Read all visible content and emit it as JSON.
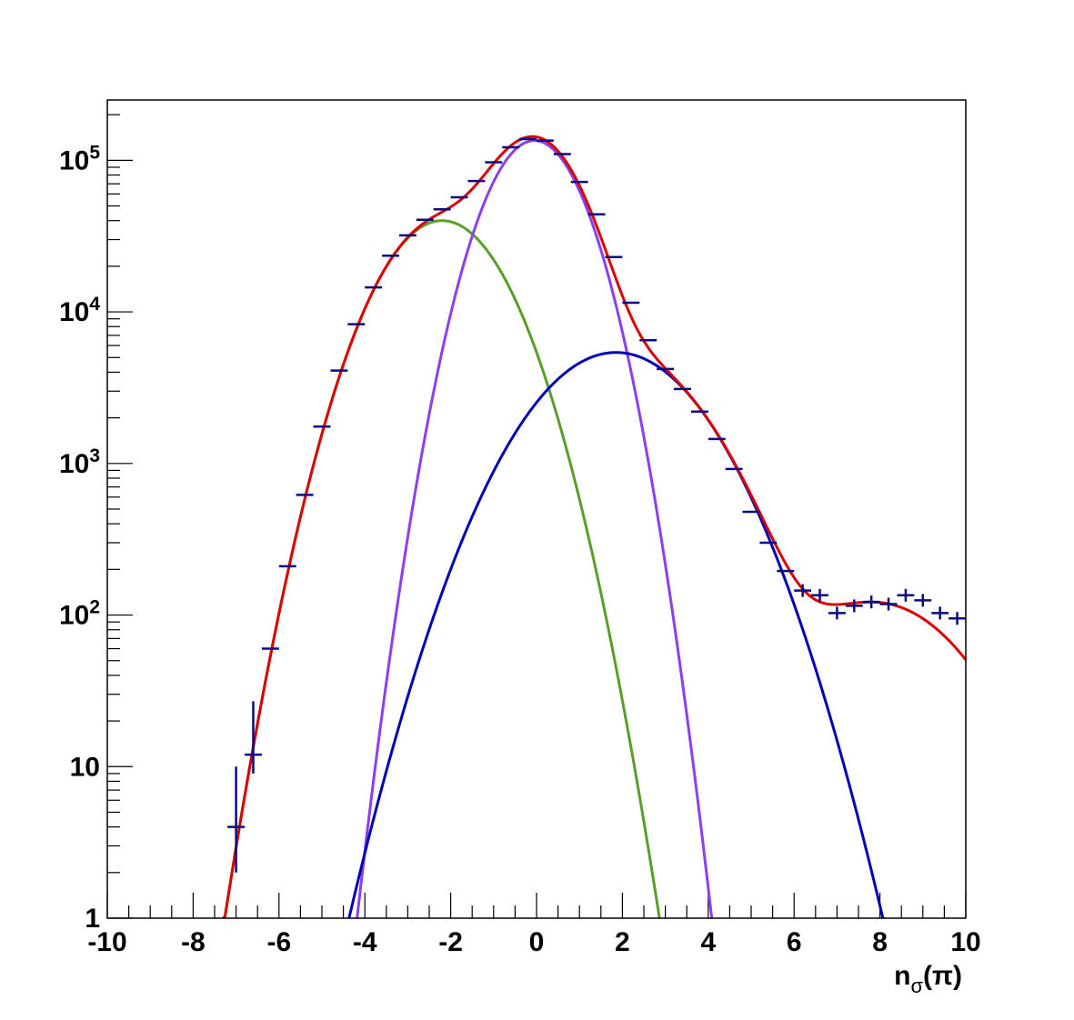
{
  "chart_data": {
    "type": "scatter",
    "xlabel": "n",
    "xlabel_sub": "σ",
    "xlabel_tail": "(π)",
    "xlim": [
      -10,
      10
    ],
    "ylim": [
      1,
      250000
    ],
    "yscale": "log",
    "grid": false,
    "x_ticks": [
      "-10",
      "-8",
      "-6",
      "-4",
      "-2",
      "0",
      "2",
      "4",
      "6",
      "8",
      "10"
    ],
    "y_ticks": [
      {
        "base": "10",
        "exp": "5",
        "value": 100000
      },
      {
        "base": "10",
        "exp": "4",
        "value": 10000
      },
      {
        "base": "10",
        "exp": "3",
        "value": 1000
      },
      {
        "base": "10",
        "exp": "2",
        "value": 100
      },
      {
        "base": "10",
        "exp": "",
        "value": 10
      },
      {
        "base": "1",
        "exp": "",
        "value": 1
      }
    ],
    "colors": {
      "data": "#0a0a80",
      "total_fit": "#dd0000",
      "green_component": "#5a9e2a",
      "purple_component": "#8a3ff0",
      "blue_component": "#0000bb"
    },
    "series": [
      {
        "kind": "points",
        "x": [
          -7.0,
          -6.6,
          -6.2,
          -5.8,
          -5.4,
          -5.0,
          -4.6,
          -4.2,
          -3.8,
          -3.4,
          -3.0,
          -2.6,
          -2.2,
          -1.8,
          -1.4,
          -1.0,
          -0.6,
          -0.2,
          0.2,
          0.6,
          1.0,
          1.4,
          1.8,
          2.2,
          2.6,
          3.0,
          3.4,
          3.8,
          4.2,
          4.6,
          5.0,
          5.4,
          5.8,
          6.2,
          6.6,
          7.0,
          7.4,
          7.8,
          8.2,
          8.6,
          9.0,
          9.4,
          9.8
        ],
        "y": [
          4,
          12,
          60,
          210,
          620,
          1750,
          4100,
          8300,
          14500,
          23500,
          32000,
          40500,
          47500,
          57000,
          73000,
          97000,
          122000,
          138000,
          135000,
          110000,
          72000,
          44000,
          23000,
          11500,
          6500,
          4200,
          3100,
          2200,
          1450,
          920,
          480,
          300,
          195,
          145,
          135,
          103,
          115,
          122,
          118,
          135,
          125,
          103,
          95
        ],
        "yerr_low": [
          2,
          3,
          0,
          0,
          0,
          0,
          0,
          0,
          0,
          0,
          0,
          0,
          0,
          0,
          0,
          0,
          0,
          0,
          0,
          0,
          0,
          0,
          0,
          0,
          0,
          0,
          0,
          0,
          0,
          0,
          0,
          0,
          0,
          0,
          0,
          0,
          0,
          0,
          0,
          0,
          0,
          0,
          0
        ],
        "yerr_high": [
          6,
          15,
          0,
          0,
          0,
          0,
          0,
          0,
          0,
          0,
          0,
          0,
          0,
          0,
          0,
          0,
          0,
          0,
          0,
          0,
          0,
          0,
          0,
          0,
          0,
          0,
          0,
          0,
          0,
          0,
          0,
          0,
          0,
          0,
          0,
          0,
          0,
          0,
          0,
          0,
          0,
          0,
          0
        ]
      },
      {
        "kind": "gaussian",
        "color_key": "green_component",
        "amplitude": 40000,
        "mean": -2.2,
        "sigma": 1.1,
        "x_from": -8,
        "x_to": 2.9
      },
      {
        "kind": "gaussian",
        "color_key": "purple_component",
        "amplitude": 135000,
        "mean": -0.05,
        "sigma": 0.85,
        "x_from": -4.5,
        "x_to": 4.6
      },
      {
        "kind": "gaussian",
        "color_key": "blue_component",
        "amplitude": 5400,
        "mean": 1.85,
        "sigma": 1.5,
        "x_from": -4.2,
        "x_to": 8.1
      },
      {
        "kind": "total",
        "color_key": "total_fit",
        "extra_amplitude": 120,
        "extra_mean": 7.9,
        "extra_sigma": 1.6,
        "x_from": -7.3,
        "x_to": 10
      }
    ]
  }
}
